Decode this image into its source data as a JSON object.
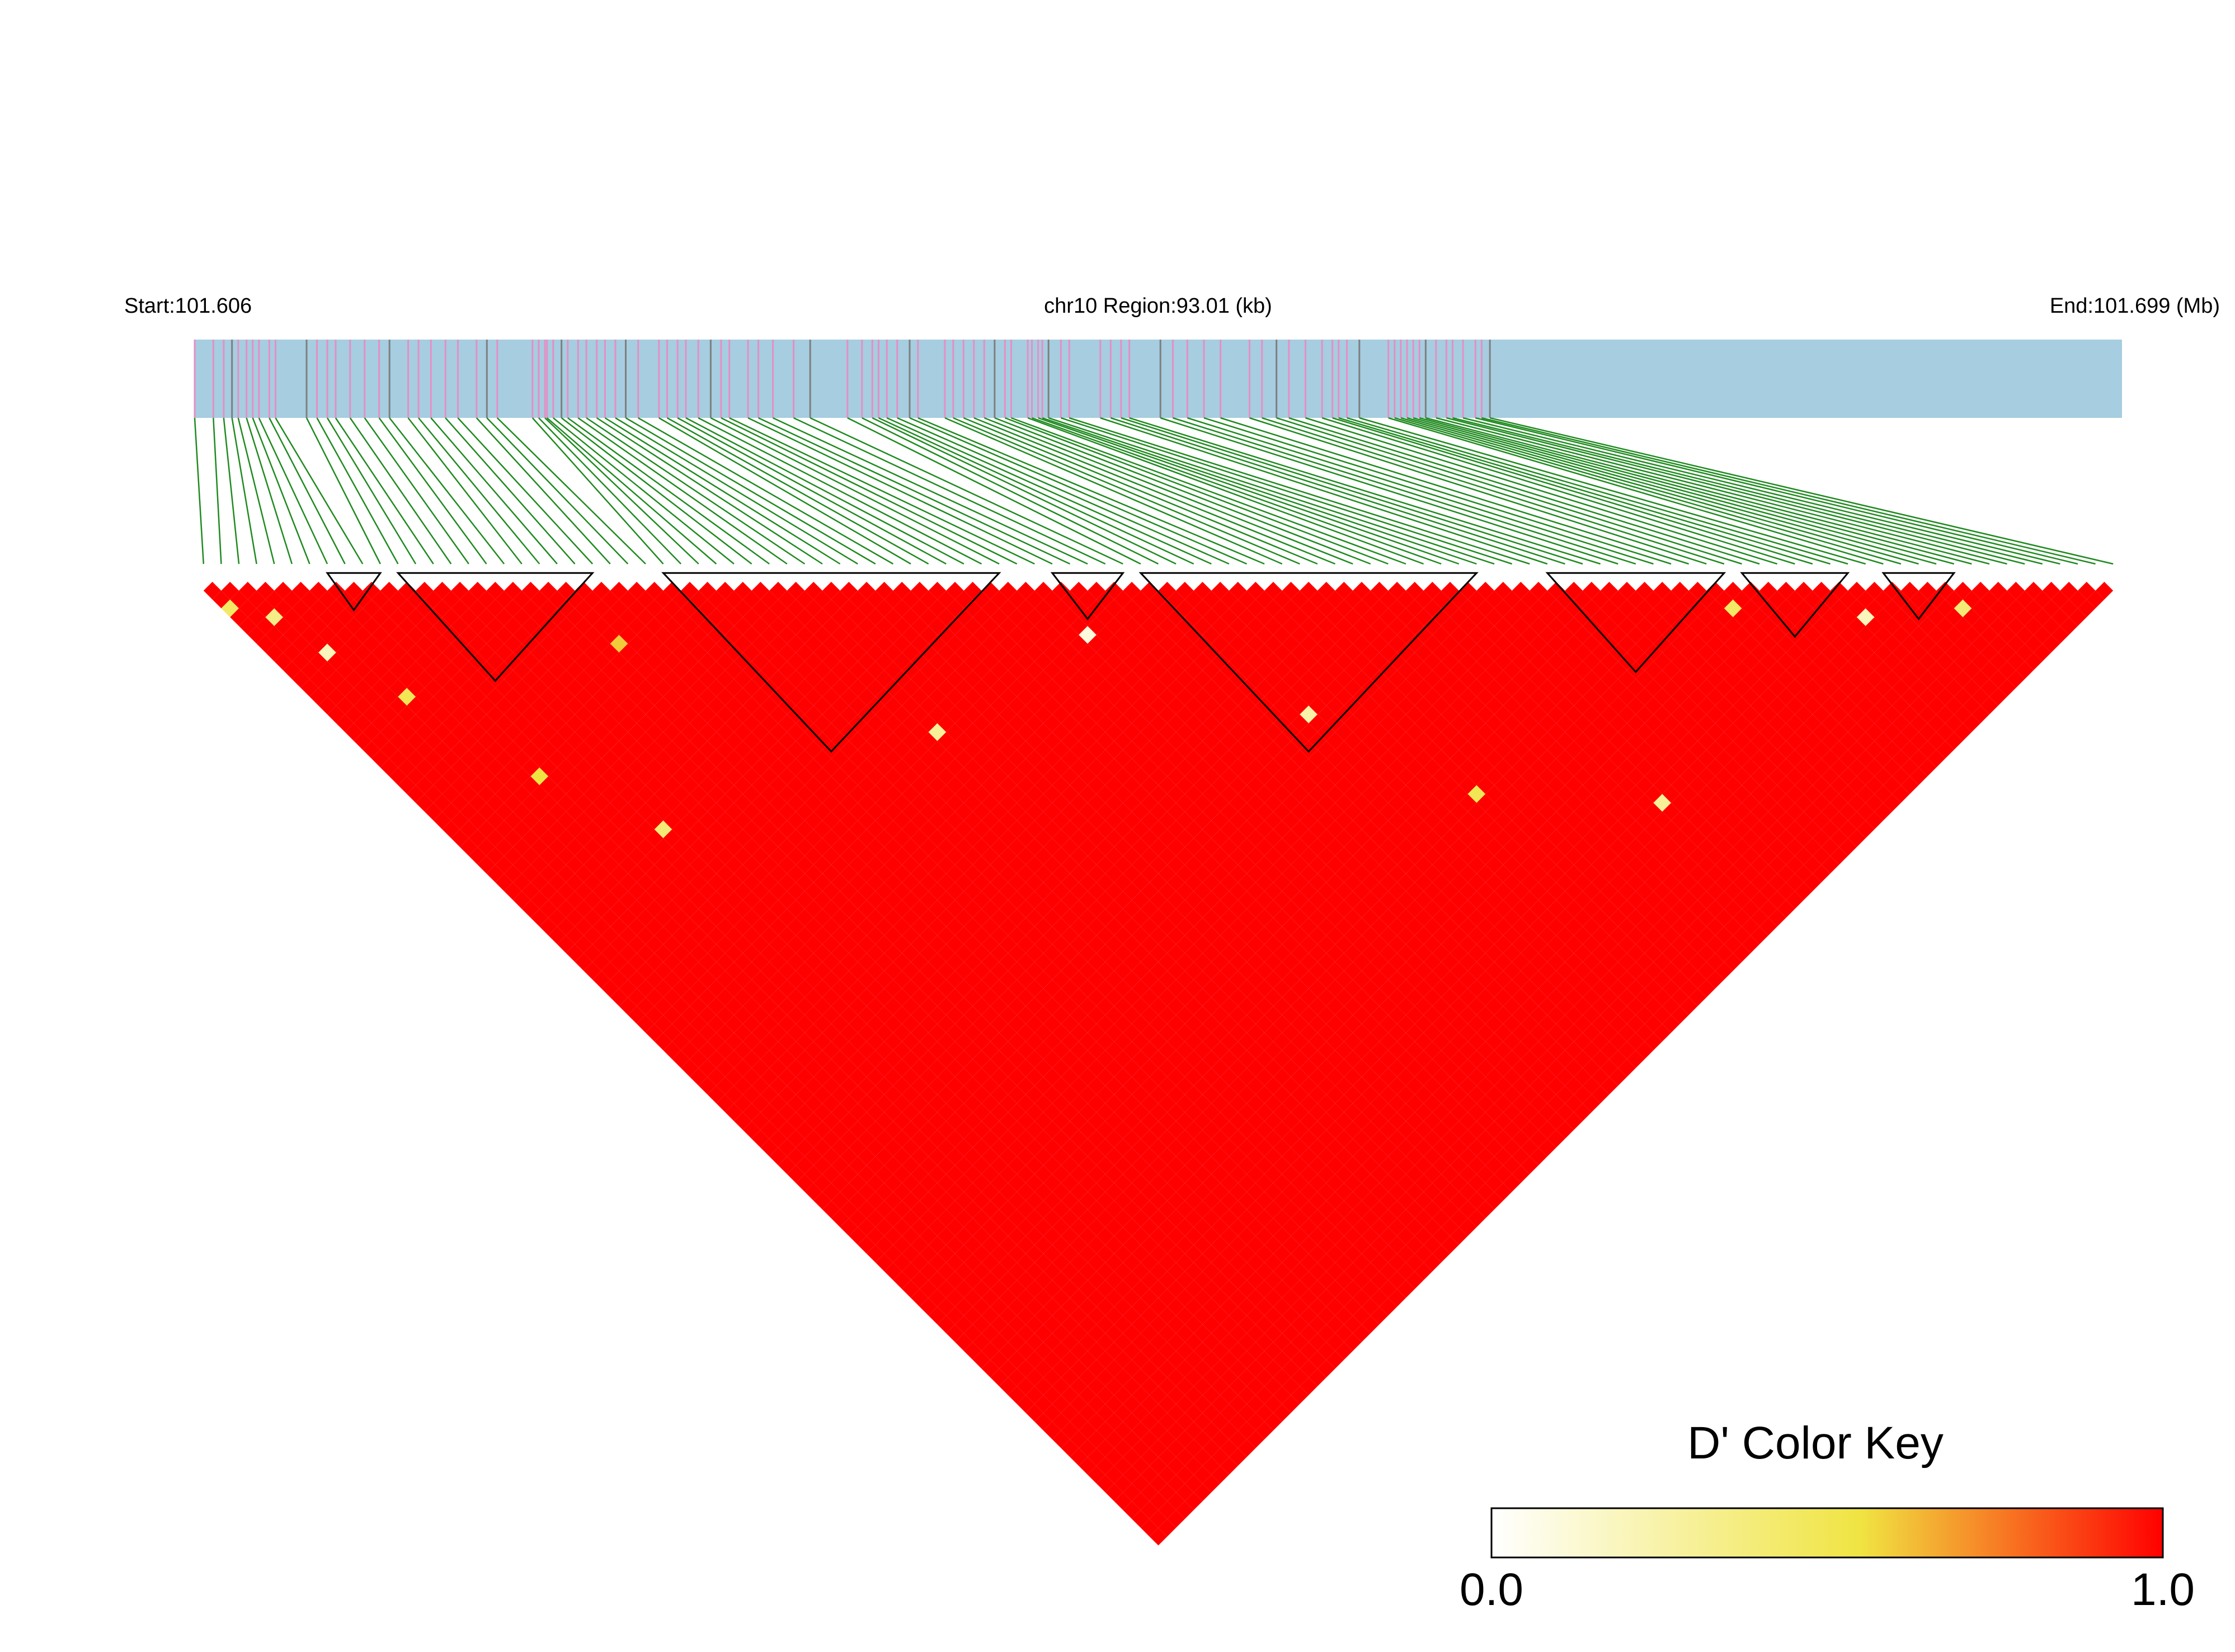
{
  "header": {
    "start_label": "Start:101.606",
    "region_label": "chr10 Region:93.01 (kb)",
    "end_label": "End:101.699 (Mb)"
  },
  "legend": {
    "title": "D' Color Key",
    "min_label": "0.0",
    "max_label": "1.0"
  },
  "colors": {
    "track": "#a6cde0",
    "snp_tick": "#e58fc5",
    "snp_tick_dark": "#7f7f7f",
    "connector": "#1f8a1f",
    "high": "#ff0000",
    "mid": "#f0e442",
    "low": "#ffffff",
    "block_outline": "#000000"
  },
  "chart_data": {
    "type": "heatmap",
    "title": "",
    "chromosome": "chr10",
    "region_start_mb": 101.606,
    "region_end_mb": 101.699,
    "region_size_kb": 93.01,
    "metric": "D'",
    "color_scale": {
      "min": 0.0,
      "max": 1.0,
      "stops": [
        "#ffffff",
        "#f0e442",
        "#ff0000"
      ]
    },
    "snp_count": 109,
    "snp_positions_mb": [
      101.606,
      101.6069,
      101.6074,
      101.6078,
      101.6081,
      101.6085,
      101.6088,
      101.6091,
      101.6096,
      101.6099,
      101.6114,
      101.6119,
      101.6124,
      101.6128,
      101.6135,
      101.6142,
      101.6149,
      101.6154,
      101.6163,
      101.6168,
      101.6174,
      101.6181,
      101.6187,
      101.6196,
      101.6201,
      101.6206,
      101.6223,
      101.6226,
      101.6229,
      101.623,
      101.6233,
      101.6237,
      101.624,
      101.6245,
      101.6249,
      101.6254,
      101.6258,
      101.6263,
      101.6268,
      101.6274,
      101.6284,
      101.6288,
      101.6293,
      101.6297,
      101.6303,
      101.6309,
      101.6314,
      101.6318,
      101.6327,
      101.6332,
      101.6339,
      101.6349,
      101.6357,
      101.6375,
      101.6382,
      101.6387,
      101.639,
      101.6394,
      101.6399,
      101.6405,
      101.6409,
      101.6422,
      101.6426,
      101.6431,
      101.6436,
      101.6441,
      101.6446,
      101.6451,
      101.6454,
      101.6462,
      101.6464,
      101.6467,
      101.6469,
      101.6472,
      101.6478,
      101.6482,
      101.6497,
      101.6502,
      101.6507,
      101.6511,
      101.6526,
      101.6532,
      101.6539,
      101.6547,
      101.6555,
      101.6569,
      101.6575,
      101.6582,
      101.6588,
      101.6596,
      101.6604,
      101.6609,
      101.6612,
      101.6616,
      101.6622,
      101.6636,
      101.6639,
      101.6642,
      101.6645,
      101.6648,
      101.6651,
      101.6654,
      101.6659,
      101.6664,
      101.6667,
      101.6672,
      101.6678,
      101.6681,
      101.6685
    ],
    "haplotype_blocks": [
      {
        "first_snp": 7,
        "last_snp": 10
      },
      {
        "first_snp": 11,
        "last_snp": 22
      },
      {
        "first_snp": 26,
        "last_snp": 45
      },
      {
        "first_snp": 48,
        "last_snp": 52
      },
      {
        "first_snp": 53,
        "last_snp": 72
      },
      {
        "first_snp": 76,
        "last_snp": 86
      },
      {
        "first_snp": 87,
        "last_snp": 93
      },
      {
        "first_snp": 95,
        "last_snp": 99
      }
    ],
    "low_dprime_pairs": [
      {
        "i": 0,
        "j": 3,
        "d": 0.45
      },
      {
        "i": 2,
        "j": 6,
        "d": 0.35
      },
      {
        "i": 3,
        "j": 11,
        "d": 0.2
      },
      {
        "i": 5,
        "j": 18,
        "d": 0.5
      },
      {
        "i": 8,
        "j": 30,
        "d": 0.55
      },
      {
        "i": 12,
        "j": 40,
        "d": 0.4
      },
      {
        "i": 20,
        "j": 27,
        "d": 0.6
      },
      {
        "i": 33,
        "j": 50,
        "d": 0.3
      },
      {
        "i": 47,
        "j": 53,
        "d": 0.1
      },
      {
        "i": 55,
        "j": 70,
        "d": 0.25
      },
      {
        "i": 60,
        "j": 84,
        "d": 0.5
      },
      {
        "i": 70,
        "j": 95,
        "d": 0.3
      },
      {
        "i": 85,
        "j": 88,
        "d": 0.45
      },
      {
        "i": 92,
        "j": 96,
        "d": 0.2
      },
      {
        "i": 98,
        "j": 101,
        "d": 0.4
      }
    ],
    "default_dprime": 1.0
  }
}
